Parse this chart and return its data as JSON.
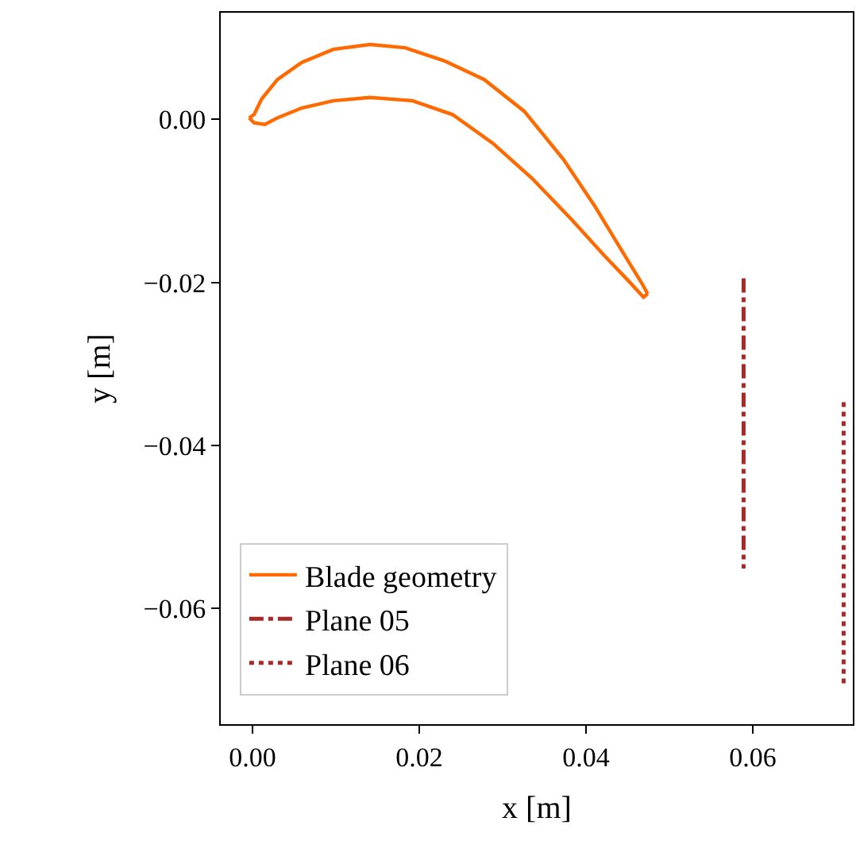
{
  "chart_data": {
    "type": "line",
    "xlabel": "x [m]",
    "ylabel": "y [m]",
    "xlim": [
      -0.0038,
      0.072
    ],
    "ylim": [
      -0.0742,
      0.0131
    ],
    "xticks": [
      {
        "value": 0,
        "label": "0.00"
      },
      {
        "value": 0.02,
        "label": "0.02"
      },
      {
        "value": 0.04,
        "label": "0.04"
      },
      {
        "value": 0.06,
        "label": "0.06"
      }
    ],
    "yticks": [
      {
        "value": 0,
        "label": "0.00"
      },
      {
        "value": -0.02,
        "label": "−0.02"
      },
      {
        "value": -0.04,
        "label": "−0.04"
      },
      {
        "value": -0.06,
        "label": "−0.06"
      }
    ],
    "legend": "bottom left",
    "marker": "none",
    "series": [
      {
        "name": "Blade geometry",
        "color": "#ff6a00",
        "line_style": "solid",
        "x": [
          -0.0004,
          0.0002,
          0.0011,
          0.003,
          0.0059,
          0.0097,
          0.0141,
          0.0183,
          0.023,
          0.0278,
          0.0326,
          0.0373,
          0.0411,
          0.0446,
          0.0467,
          0.0474
        ],
        "values": [
          0.0002,
          0.0006,
          0.0025,
          0.0049,
          0.007,
          0.0086,
          0.0092,
          0.0088,
          0.0072,
          0.0049,
          0.001,
          -0.0049,
          -0.0107,
          -0.0166,
          -0.0201,
          -0.0214
        ]
      },
      {
        "color": "#ff6a00",
        "line_style": "solid",
        "x": [
          -0.0004,
          0.0002,
          0.0015,
          0.003,
          0.0059,
          0.0097,
          0.0141,
          0.0192,
          0.024,
          0.0288,
          0.0335,
          0.0383,
          0.0421,
          0.045,
          0.0469,
          0.0474
        ],
        "values": [
          0.0002,
          -0.0004,
          -0.0006,
          0.0002,
          0.0014,
          0.0023,
          0.0027,
          0.0023,
          0.0006,
          -0.0029,
          -0.0072,
          -0.0123,
          -0.0166,
          -0.0197,
          -0.0218,
          -0.0214
        ]
      },
      {
        "name": "Plane 05",
        "color": "#a52a2a",
        "line_style": "dashdot",
        "x": [
          0.0589,
          0.0589
        ],
        "values": [
          -0.0195,
          -0.0551
        ]
      },
      {
        "name": "Plane 06",
        "color": "#a52a2a",
        "line_style": "dotted",
        "x": [
          0.0709,
          0.0709
        ],
        "values": [
          -0.0347,
          -0.0695
        ]
      }
    ]
  }
}
